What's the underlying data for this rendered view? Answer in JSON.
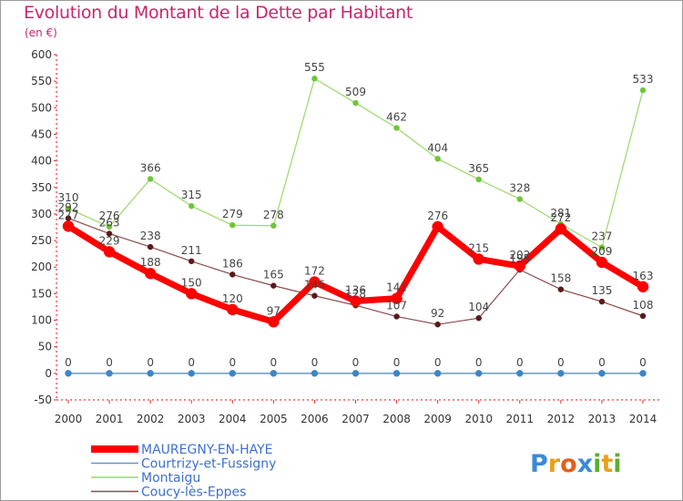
{
  "chart_data": {
    "type": "line",
    "title": "Evolution du Montant de la Dette par Habitant",
    "subtitle": "(en €)",
    "xlabel": "",
    "ylabel": "",
    "ylim": [
      -50,
      600
    ],
    "yticks": [
      -50,
      0,
      50,
      100,
      150,
      200,
      250,
      300,
      350,
      400,
      450,
      500,
      550,
      600
    ],
    "x": [
      2000,
      2001,
      2002,
      2003,
      2004,
      2005,
      2006,
      2007,
      2008,
      2009,
      2010,
      2011,
      2012,
      2013,
      2014
    ],
    "grid": false,
    "legend_position": "bottom-left",
    "series": [
      {
        "name": "Montaigu",
        "color": "#9ad96a",
        "marker": "#6fc53a",
        "values": [
          310,
          276,
          366,
          315,
          279,
          278,
          555,
          509,
          462,
          404,
          365,
          328,
          281,
          237,
          533
        ]
      },
      {
        "name": "Coucy-lès-Eppes",
        "color": "#8b4a4a",
        "marker": "#5a1a1a",
        "values": [
          292,
          263,
          238,
          211,
          186,
          165,
          146,
          128,
          107,
          92,
          104,
          195,
          158,
          135,
          108
        ]
      },
      {
        "name": "Courtrizy-et-Fussigny",
        "color": "#6699cc",
        "marker": "#3d85c6",
        "values": [
          0,
          0,
          0,
          0,
          0,
          0,
          0,
          0,
          0,
          0,
          0,
          0,
          0,
          0,
          0
        ]
      },
      {
        "name": "MAUREGNY-EN-HAYE",
        "color": "#ff0000",
        "marker": "#ff0000",
        "values": [
          277,
          229,
          188,
          150,
          120,
          97,
          172,
          136,
          141,
          276,
          215,
          202,
          272,
          209,
          163
        ]
      }
    ],
    "legend_order": [
      "MAUREGNY-EN-HAYE",
      "Courtrizy-et-Fussigny",
      "Montaigu",
      "Coucy-lès-Eppes"
    ],
    "legend_colors": [
      "#3d6fd0",
      "#3d6fd0",
      "#3d6fd0",
      "#3d6fd0"
    ]
  },
  "logo": {
    "text": "Proxiti",
    "letters": [
      "P",
      "r",
      "o",
      "x",
      "i",
      "t",
      "i"
    ],
    "colors": [
      "#3a8ad8",
      "#e8a020",
      "#e06020",
      "#3a8ad8",
      "#58b030",
      "#e8a020",
      "#58b030"
    ]
  }
}
